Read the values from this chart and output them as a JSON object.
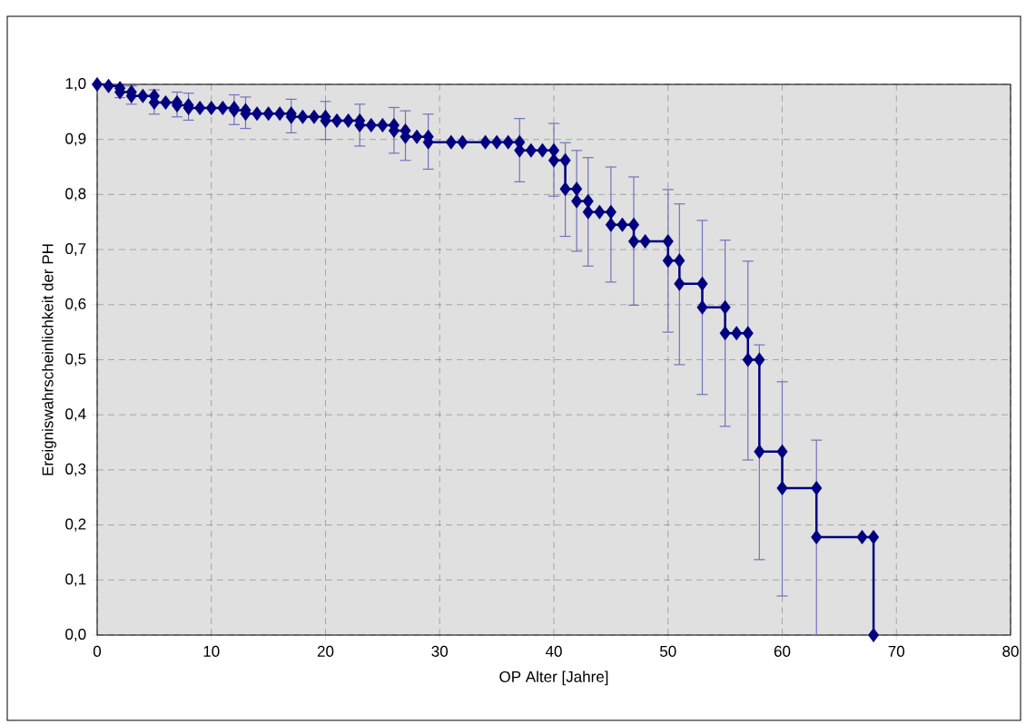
{
  "chart_data": {
    "type": "step",
    "xlabel": "OP Alter [Jahre]",
    "ylabel": "Ereigniswahrscheinlichkeit der  PH",
    "x": [
      0,
      1,
      2,
      2,
      3,
      3,
      4,
      5,
      5,
      6,
      7,
      7,
      8,
      8,
      9,
      10,
      11,
      12,
      12,
      13,
      13,
      14,
      15,
      16,
      17,
      17,
      18,
      19,
      20,
      20,
      21,
      22,
      23,
      23,
      24,
      25,
      26,
      26,
      27,
      27,
      28,
      29,
      29,
      31,
      32,
      34,
      35,
      36,
      37,
      37,
      38,
      39,
      40,
      40,
      41,
      41,
      42,
      42,
      43,
      43,
      44,
      45,
      45,
      46,
      47,
      47,
      48,
      50,
      50,
      51,
      51,
      53,
      53,
      55,
      55,
      56,
      57,
      57,
      58,
      58,
      60,
      60,
      63,
      63,
      67,
      68,
      68
    ],
    "values": [
      1.0,
      0.997,
      0.993,
      0.986,
      0.986,
      0.979,
      0.979,
      0.979,
      0.967,
      0.967,
      0.967,
      0.962,
      0.962,
      0.957,
      0.957,
      0.957,
      0.957,
      0.957,
      0.953,
      0.953,
      0.947,
      0.947,
      0.947,
      0.947,
      0.947,
      0.941,
      0.941,
      0.941,
      0.941,
      0.934,
      0.934,
      0.934,
      0.934,
      0.926,
      0.926,
      0.926,
      0.926,
      0.916,
      0.916,
      0.905,
      0.905,
      0.905,
      0.895,
      0.895,
      0.895,
      0.895,
      0.895,
      0.895,
      0.895,
      0.88,
      0.88,
      0.88,
      0.88,
      0.862,
      0.862,
      0.81,
      0.81,
      0.788,
      0.788,
      0.768,
      0.768,
      0.768,
      0.745,
      0.745,
      0.745,
      0.715,
      0.715,
      0.715,
      0.68,
      0.68,
      0.638,
      0.638,
      0.595,
      0.595,
      0.548,
      0.548,
      0.548,
      0.5,
      0.5,
      0.333,
      0.333,
      0.267,
      0.267,
      0.178,
      0.178,
      0.178,
      0.0
    ],
    "errors": [
      null,
      null,
      null,
      [
        0.976,
        0.997
      ],
      null,
      [
        0.964,
        0.997
      ],
      null,
      null,
      [
        0.946,
        0.99
      ],
      null,
      null,
      [
        0.941,
        0.986
      ],
      null,
      [
        0.935,
        0.984
      ],
      null,
      null,
      null,
      null,
      [
        0.927,
        0.981
      ],
      null,
      [
        0.92,
        0.977
      ],
      null,
      null,
      null,
      null,
      [
        0.912,
        0.973
      ],
      null,
      null,
      null,
      [
        0.9,
        0.969
      ],
      null,
      null,
      null,
      [
        0.888,
        0.964
      ],
      null,
      null,
      null,
      [
        0.875,
        0.958
      ],
      null,
      [
        0.862,
        0.952
      ],
      null,
      null,
      [
        0.846,
        0.946
      ],
      null,
      null,
      null,
      null,
      null,
      null,
      [
        0.823,
        0.938
      ],
      null,
      null,
      null,
      [
        0.797,
        0.929
      ],
      null,
      [
        0.724,
        0.894
      ],
      null,
      [
        0.697,
        0.88
      ],
      null,
      [
        0.67,
        0.867
      ],
      null,
      null,
      [
        0.641,
        0.85
      ],
      null,
      null,
      [
        0.599,
        0.832
      ],
      null,
      null,
      [
        0.55,
        0.809
      ],
      null,
      [
        0.491,
        0.783
      ],
      null,
      [
        0.437,
        0.753
      ],
      null,
      [
        0.379,
        0.717
      ],
      null,
      null,
      [
        0.318,
        0.679
      ],
      null,
      [
        0.137,
        0.527
      ],
      null,
      [
        0.071,
        0.46
      ],
      null,
      [
        0.0,
        0.354
      ],
      null,
      null,
      null
    ],
    "color": "#000080",
    "marker": "diamond",
    "grid": true,
    "xlim": [
      0,
      80
    ],
    "ylim": [
      0,
      1.0
    ],
    "xticks": [
      0,
      10,
      20,
      30,
      40,
      50,
      60,
      70,
      80
    ],
    "yticks": [
      {
        "value": 0,
        "label": "0,0"
      },
      {
        "value": 0.1,
        "label": "0,1"
      },
      {
        "value": 0.2,
        "label": "0,2"
      },
      {
        "value": 0.3,
        "label": "0,3"
      },
      {
        "value": 0.4,
        "label": "0,4"
      },
      {
        "value": 0.5,
        "label": "0,5"
      },
      {
        "value": 0.6,
        "label": "0,6"
      },
      {
        "value": 0.7,
        "label": "0,7"
      },
      {
        "value": 0.8,
        "label": "0,8"
      },
      {
        "value": 0.9,
        "label": "0,9"
      },
      {
        "value": 1.0,
        "label": "1,0"
      }
    ]
  }
}
